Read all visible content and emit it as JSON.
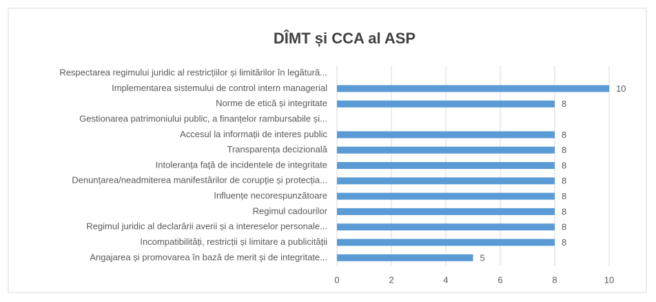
{
  "chart_data": {
    "type": "hbar",
    "title": "DÎMT și CCA al ASP",
    "categories": [
      "Respectarea regimului juridic al restricțiilor și limitărilor în legătură...",
      "Implementarea sistemului de control intern managerial",
      "Norme de etică și integritate",
      "Gestionarea patrimoniului public, a finanțelor rambursabile și...",
      "Accesul la informații de interes public",
      "Transparența decizională",
      "Intoleranța față de incidentele de integritate",
      "Denunțarea/neadmiterea manifestărilor de corupție și protecția...",
      "Influențe necorespunzătoare",
      "Regimul cadourilor",
      "Regimul juridic al declarării averii și a intereselor personale...",
      "Incompatibilități, restricții și limitare a publicității",
      "Angajarea și promovarea în bază de merit și de integritate..."
    ],
    "values": [
      null,
      10,
      8,
      null,
      8,
      8,
      8,
      8,
      8,
      8,
      8,
      8,
      5
    ],
    "color": "#5b9bd5",
    "xlim": [
      0,
      10
    ],
    "xticks": [
      0,
      2,
      4,
      6,
      8,
      10
    ],
    "grid": true
  }
}
